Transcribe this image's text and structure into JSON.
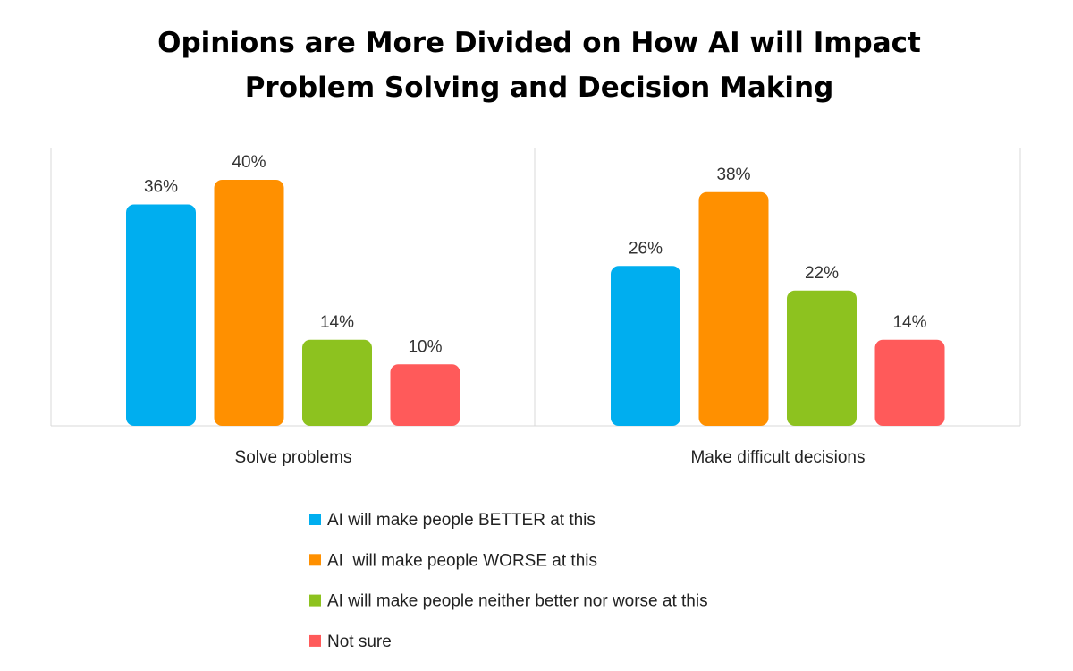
{
  "chart_data": {
    "type": "bar",
    "title": [
      "Opinions are More Divided on How AI will Impact",
      "Problem Solving and Decision Making"
    ],
    "categories": [
      "Solve problems",
      "Make difficult decisions"
    ],
    "series": [
      {
        "name": "AI will make people BETTER at this",
        "color": "#00AEEF",
        "values": [
          36,
          26
        ]
      },
      {
        "name": "AI  will make people WORSE at this",
        "color": "#FF9000",
        "values": [
          40,
          38
        ]
      },
      {
        "name": "AI will make people neither better nor worse at this",
        "color": "#8DC21F",
        "values": [
          14,
          22
        ]
      },
      {
        "name": "Not sure",
        "color": "#FF5A5A",
        "values": [
          10,
          14
        ]
      }
    ],
    "value_format": "percent",
    "ylim": [
      0,
      45
    ],
    "grid": false,
    "legend_position": "bottom"
  }
}
